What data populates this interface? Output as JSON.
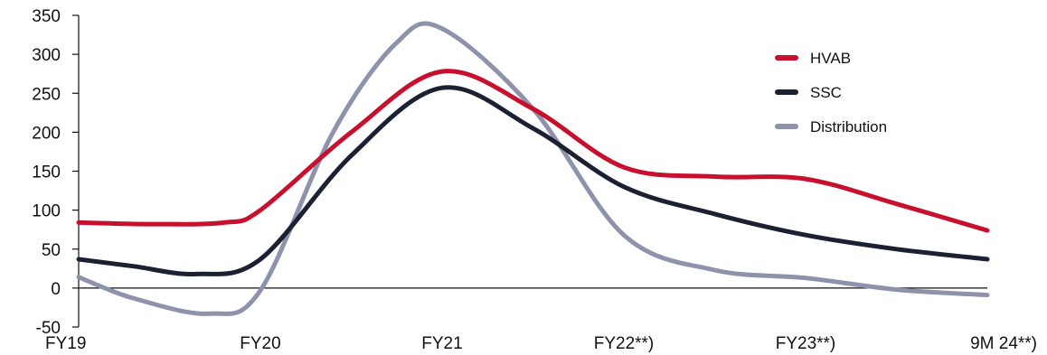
{
  "chart_data": {
    "type": "line",
    "x": [
      "FY19",
      "FY20",
      "FY21",
      "FY22**)",
      "FY23**)",
      "9M 24**)"
    ],
    "ylim": [
      -50,
      350
    ],
    "yticks": [
      350,
      300,
      250,
      200,
      150,
      100,
      50,
      0,
      -50
    ],
    "grid": false,
    "legend_position": "top-right",
    "series": [
      {
        "name": "HVAB",
        "color": "#c8102e",
        "values": [
          84,
          100,
          278,
          155,
          140,
          74
        ],
        "curve": [
          [
            0,
            84
          ],
          [
            0.4,
            82
          ],
          [
            0.8,
            84
          ],
          [
            1,
            100
          ],
          [
            1.5,
            200
          ],
          [
            2,
            278
          ],
          [
            2.5,
            230
          ],
          [
            3,
            155
          ],
          [
            3.5,
            143
          ],
          [
            4,
            140
          ],
          [
            4.5,
            108
          ],
          [
            5,
            74
          ]
        ]
      },
      {
        "name": "SSC",
        "color": "#1b2133",
        "values": [
          37,
          37,
          257,
          130,
          68,
          37
        ],
        "curve": [
          [
            0,
            37
          ],
          [
            0.3,
            28
          ],
          [
            0.65,
            18
          ],
          [
            1,
            37
          ],
          [
            1.5,
            170
          ],
          [
            2,
            257
          ],
          [
            2.5,
            205
          ],
          [
            3,
            130
          ],
          [
            3.5,
            95
          ],
          [
            4,
            68
          ],
          [
            4.5,
            50
          ],
          [
            5,
            37
          ]
        ]
      },
      {
        "name": "Distribution",
        "color": "#8e93ab",
        "values": [
          14,
          -3,
          333,
          68,
          13,
          -9
        ],
        "curve": [
          [
            0,
            14
          ],
          [
            0.3,
            -13
          ],
          [
            0.72,
            -33
          ],
          [
            1,
            -3
          ],
          [
            1.4,
            200
          ],
          [
            1.75,
            315
          ],
          [
            2,
            333
          ],
          [
            2.5,
            230
          ],
          [
            3,
            68
          ],
          [
            3.5,
            23
          ],
          [
            4,
            13
          ],
          [
            4.5,
            -2
          ],
          [
            5,
            -9
          ]
        ]
      }
    ]
  }
}
